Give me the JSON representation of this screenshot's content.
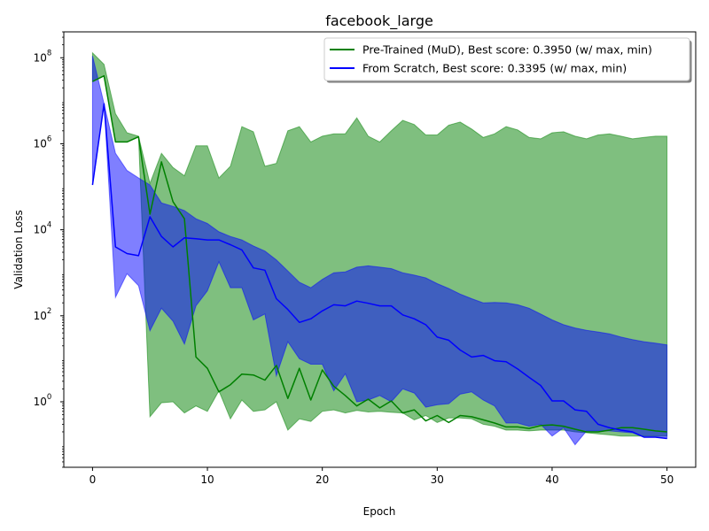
{
  "chart_data": {
    "type": "line",
    "title": "facebook_large",
    "xlabel": "Epoch",
    "ylabel": "Validation Loss",
    "yscale": "log",
    "xlim": [
      -2.5,
      52.5
    ],
    "ylim": [
      0.03,
      400000000
    ],
    "x_ticks": [
      0,
      10,
      20,
      30,
      40,
      50
    ],
    "y_ticks": [
      {
        "value": 1,
        "base": "10",
        "exp": "0"
      },
      {
        "value": 100,
        "base": "10",
        "exp": "2"
      },
      {
        "value": 10000,
        "base": "10",
        "exp": "4"
      },
      {
        "value": 1000000,
        "base": "10",
        "exp": "6"
      },
      {
        "value": 100000000,
        "base": "10",
        "exp": "8"
      }
    ],
    "legend_position": "upper right",
    "series": [
      {
        "name": "Pre-Trained (MuD), Best score: 0.3950 (w/ max, min)",
        "color": "#008000",
        "fill": "#008000",
        "fill_opacity": 0.5,
        "x": [
          0,
          1,
          2,
          3,
          4,
          5,
          6,
          7,
          8,
          9,
          10,
          11,
          12,
          13,
          14,
          15,
          16,
          17,
          18,
          19,
          20,
          21,
          22,
          23,
          24,
          25,
          26,
          27,
          28,
          29,
          30,
          31,
          32,
          33,
          34,
          35,
          36,
          37,
          38,
          39,
          40,
          41,
          42,
          43,
          44,
          45,
          46,
          47,
          48,
          49,
          50
        ],
        "mean": [
          28000000,
          38000000,
          1100000,
          1100000,
          1450000,
          23000,
          380000,
          45000,
          18000,
          11,
          6,
          1.7,
          2.5,
          4.4,
          4.2,
          3.2,
          7,
          1.2,
          6,
          1.1,
          5.5,
          2.3,
          1.4,
          0.8,
          1.15,
          0.72,
          1.05,
          0.55,
          0.65,
          0.36,
          0.48,
          0.33,
          0.48,
          0.45,
          0.38,
          0.32,
          0.26,
          0.26,
          0.24,
          0.28,
          0.29,
          0.27,
          0.23,
          0.2,
          0.2,
          0.22,
          0.25,
          0.25,
          0.23,
          0.21,
          0.2
        ],
        "max": [
          130000000,
          70000000,
          5000000,
          1800000,
          1500000,
          120000,
          600000,
          280000,
          180000,
          900000,
          900000,
          160000,
          300000,
          2500000,
          1900000,
          300000,
          350000,
          2000000,
          2500000,
          1100000,
          1500000,
          1700000,
          1700000,
          4000000,
          1500000,
          1100000,
          2000000,
          3500000,
          2800000,
          1600000,
          1600000,
          2700000,
          3200000,
          2200000,
          1400000,
          1700000,
          2500000,
          2100000,
          1400000,
          1300000,
          1800000,
          1900000,
          1500000,
          1300000,
          1600000,
          1700000,
          1500000,
          1300000,
          1400000,
          1500000,
          1500000
        ],
        "min": [
          28000000,
          38000000,
          1100000,
          1100000,
          1450000,
          0.45,
          0.95,
          1,
          0.55,
          0.8,
          0.6,
          1.8,
          0.4,
          1.1,
          0.6,
          0.65,
          1,
          0.22,
          0.4,
          0.35,
          0.6,
          0.65,
          0.55,
          0.63,
          0.58,
          0.6,
          0.57,
          0.55,
          0.38,
          0.48,
          0.33,
          0.42,
          0.42,
          0.4,
          0.3,
          0.27,
          0.22,
          0.22,
          0.21,
          0.22,
          0.22,
          0.22,
          0.2,
          0.19,
          0.18,
          0.17,
          0.16,
          0.16,
          0.16,
          0.16,
          0.16
        ]
      },
      {
        "name": "From Scratch, Best score: 0.3395 (w/ max, min)",
        "color": "#0000ff",
        "fill": "#0000ff",
        "fill_opacity": 0.5,
        "x": [
          0,
          1,
          2,
          3,
          4,
          5,
          6,
          7,
          8,
          9,
          10,
          11,
          12,
          13,
          14,
          15,
          16,
          17,
          18,
          19,
          20,
          21,
          22,
          23,
          24,
          25,
          26,
          27,
          28,
          29,
          30,
          31,
          32,
          33,
          34,
          35,
          36,
          37,
          38,
          39,
          40,
          41,
          42,
          43,
          44,
          45,
          46,
          47,
          48,
          49,
          50
        ],
        "mean": [
          110000,
          8500000,
          4000,
          2800,
          2500,
          20000,
          7000,
          4000,
          6500,
          6200,
          5800,
          5800,
          4500,
          3400,
          1300,
          1150,
          250,
          140,
          70,
          85,
          130,
          180,
          170,
          220,
          195,
          170,
          170,
          105,
          85,
          62,
          32,
          27,
          16,
          11,
          12,
          9,
          8.5,
          5.8,
          3.7,
          2.4,
          1.05,
          1.05,
          0.65,
          0.6,
          0.3,
          0.25,
          0.22,
          0.2,
          0.15,
          0.15,
          0.14
        ],
        "max": [
          110000000,
          8500000,
          600000,
          240000,
          160000,
          110000,
          42000,
          35000,
          28000,
          18000,
          14000,
          9000,
          7000,
          5800,
          4200,
          3200,
          2000,
          1100,
          600,
          450,
          700,
          1000,
          1050,
          1350,
          1450,
          1350,
          1250,
          1000,
          880,
          760,
          560,
          430,
          320,
          250,
          200,
          205,
          200,
          180,
          150,
          110,
          80,
          62,
          52,
          46,
          42,
          38,
          32,
          28,
          25,
          23,
          21
        ],
        "min": [
          110000,
          8500000,
          270,
          950,
          500,
          45,
          150,
          75,
          22,
          170,
          380,
          1800,
          450,
          450,
          80,
          110,
          4,
          25,
          10,
          7.5,
          7.5,
          1.8,
          4.5,
          1,
          1.1,
          1.4,
          1,
          2,
          1.6,
          0.75,
          0.85,
          0.9,
          1.5,
          1.7,
          1.1,
          0.8,
          0.32,
          0.32,
          0.27,
          0.3,
          0.16,
          0.25,
          0.1,
          0.21,
          0.21,
          0.21,
          0.2,
          0.19,
          0.15,
          0.15,
          0.14
        ]
      }
    ]
  }
}
